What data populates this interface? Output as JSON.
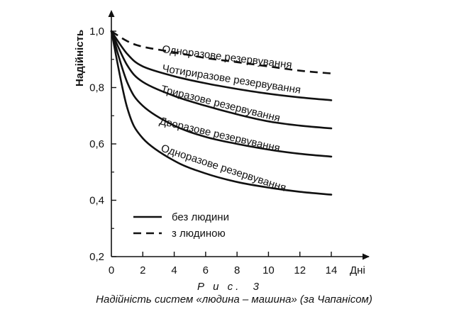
{
  "chart_data": {
    "type": "line",
    "title": "",
    "ylabel": "Надійність",
    "xlabel": "Дні",
    "xlim": [
      0,
      14
    ],
    "ylim": [
      0.2,
      1.0
    ],
    "xticks": [
      "0",
      "2",
      "4",
      "6",
      "8",
      "10",
      "12",
      "14"
    ],
    "xtick_values": [
      0,
      2,
      4,
      6,
      8,
      10,
      12,
      14
    ],
    "yticks": [
      "0,2",
      "0,4",
      "0,6",
      "0,8",
      "1,0"
    ],
    "ytick_values": [
      0.2,
      0.4,
      0.6,
      0.8,
      1.0
    ],
    "grid": false,
    "legend": {
      "placement": "bottom-left",
      "entries": [
        {
          "label": "без людини",
          "style": "solid"
        },
        {
          "label": "з людиною",
          "style": "dashed"
        }
      ]
    },
    "series": [
      {
        "label": "Одноразове резервування",
        "style": "dashed",
        "x": [
          0,
          1,
          2,
          4,
          6,
          8,
          10,
          12,
          14
        ],
        "y": [
          1.0,
          0.965,
          0.945,
          0.925,
          0.905,
          0.89,
          0.875,
          0.86,
          0.85
        ]
      },
      {
        "label": "Чотириразове резервування",
        "style": "solid",
        "x": [
          0,
          1,
          2,
          4,
          6,
          8,
          10,
          12,
          14
        ],
        "y": [
          1.0,
          0.92,
          0.875,
          0.84,
          0.815,
          0.795,
          0.778,
          0.765,
          0.755
        ]
      },
      {
        "label": "Триразове резервування",
        "style": "solid",
        "x": [
          0,
          1,
          2,
          4,
          6,
          8,
          10,
          12,
          14
        ],
        "y": [
          1.0,
          0.88,
          0.82,
          0.77,
          0.735,
          0.705,
          0.68,
          0.665,
          0.655
        ]
      },
      {
        "label": "Дворазове резервування",
        "style": "solid",
        "x": [
          0,
          1,
          2,
          4,
          6,
          8,
          10,
          12,
          14
        ],
        "y": [
          1.0,
          0.82,
          0.735,
          0.665,
          0.625,
          0.6,
          0.58,
          0.565,
          0.555
        ]
      },
      {
        "label": "Одноразове резервування",
        "style": "solid",
        "x": [
          0,
          1,
          2,
          4,
          6,
          8,
          10,
          12,
          14
        ],
        "y": [
          1.0,
          0.73,
          0.62,
          0.54,
          0.495,
          0.465,
          0.445,
          0.43,
          0.42
        ]
      }
    ]
  },
  "caption": {
    "figure_label": "Р и с.  3",
    "text": "Надійність систем «людина – машина» (за Чапанісом)"
  }
}
